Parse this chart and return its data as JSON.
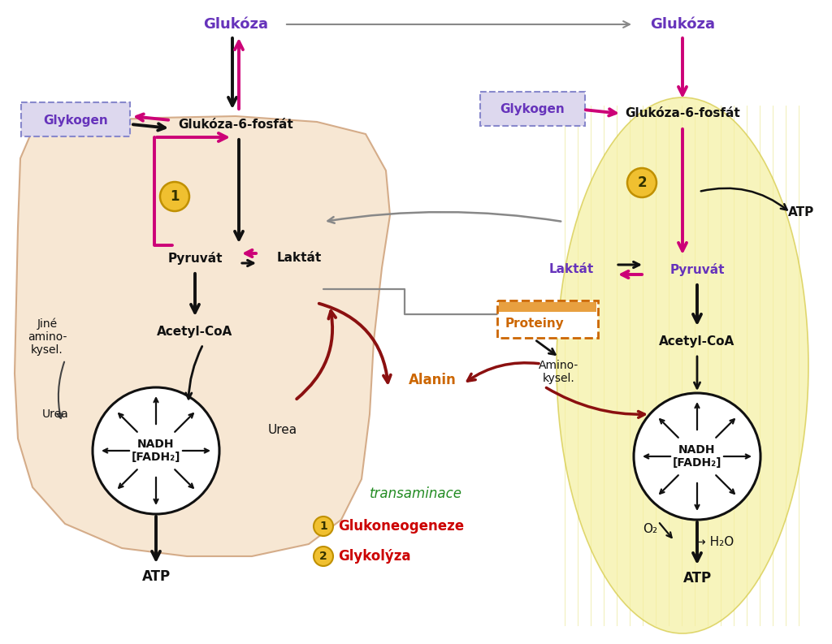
{
  "bg_color": "#ffffff",
  "liver_bg": "#f5dfc5",
  "liver_edge": "#c8956a",
  "muscle_bg": "#f5f0a0",
  "muscle_edge": "#d4c840",
  "muscle_lines": "#e8e488",
  "glukoza_color": "#6633bb",
  "black": "#111111",
  "magenta": "#cc0077",
  "darkred": "#8b1010",
  "gray": "#888888",
  "green": "#228B22",
  "orange": "#cc6600",
  "yellow_circ": "#f0c030",
  "yellow_circ_edge": "#c09000",
  "glyk_fill": "#ddd8ee",
  "glyk_edge": "#8888cc",
  "prot_fill": "#ffffff",
  "prot_edge": "#cc6600",
  "prot_top": "#e8a040",
  "glukoza_l": "Glukóza",
  "glukoza_r": "Glukóza",
  "glykogen_l": "Glykogen",
  "glykogen_r": "Glykogen",
  "g6p_l": "Glukóza-6-fosfát",
  "g6p_r": "Glukóza-6-fosfát",
  "pyruvat_l": "Pyruvát",
  "pyruvat_r": "Pyruvát",
  "laktat_l": "Laktát",
  "laktat_r": "Laktát",
  "acetylcoa_l": "Acetyl-CoA",
  "acetylcoa_r": "Acetyl-CoA",
  "urea1": "Urea",
  "urea2": "Urea",
  "jine": "Jiné\namino-\nkysel.",
  "aminokysel": "Amino-\nkysel.",
  "proteiny": "Proteiny",
  "alanin": "Alanin",
  "nadh_l": "NADH\n[FADH₂]",
  "nadh_r": "NADH\n[FADH₂]",
  "atp_l": "ATP",
  "atp_r": "ATP",
  "atp_r2": "ATP",
  "o2": "O₂",
  "h2o": "→ H₂O",
  "transaminace": "transaminace",
  "legend1": "Glukoneogeneze",
  "legend2": "Glykolýza",
  "num1": "1",
  "num2": "2",
  "lw_main": 2.2,
  "lw_thick": 2.8,
  "ms_large": 18,
  "ms_med": 14,
  "ms_small": 11
}
